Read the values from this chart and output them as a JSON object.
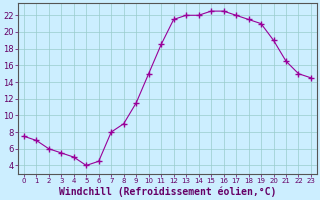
{
  "x": [
    0,
    1,
    2,
    3,
    4,
    5,
    6,
    7,
    8,
    9,
    10,
    11,
    12,
    13,
    14,
    15,
    16,
    17,
    18,
    19,
    20,
    21,
    22,
    23
  ],
  "y": [
    7.5,
    7.0,
    6.0,
    5.5,
    5.0,
    4.0,
    4.5,
    8.0,
    9.0,
    11.5,
    15.0,
    18.5,
    21.5,
    22.0,
    22.0,
    22.5,
    22.5,
    22.0,
    21.5,
    21.0,
    19.0,
    16.5,
    15.0,
    14.5
  ],
  "line_color": "#990099",
  "marker": "+",
  "marker_size": 4,
  "bg_color": "#cceeff",
  "grid_color": "#99cccc",
  "xlabel": "Windchill (Refroidissement éolien,°C)",
  "tick_color": "#660066",
  "ylabel_ticks": [
    4,
    6,
    8,
    10,
    12,
    14,
    16,
    18,
    20,
    22
  ],
  "xtick_labels": [
    "0",
    "1",
    "2",
    "3",
    "4",
    "5",
    "6",
    "7",
    "8",
    "9",
    "10",
    "11",
    "12",
    "13",
    "14",
    "15",
    "16",
    "17",
    "18",
    "19",
    "20",
    "21",
    "22",
    "23"
  ],
  "ylim": [
    3.0,
    23.5
  ],
  "xlim": [
    -0.5,
    23.5
  ]
}
